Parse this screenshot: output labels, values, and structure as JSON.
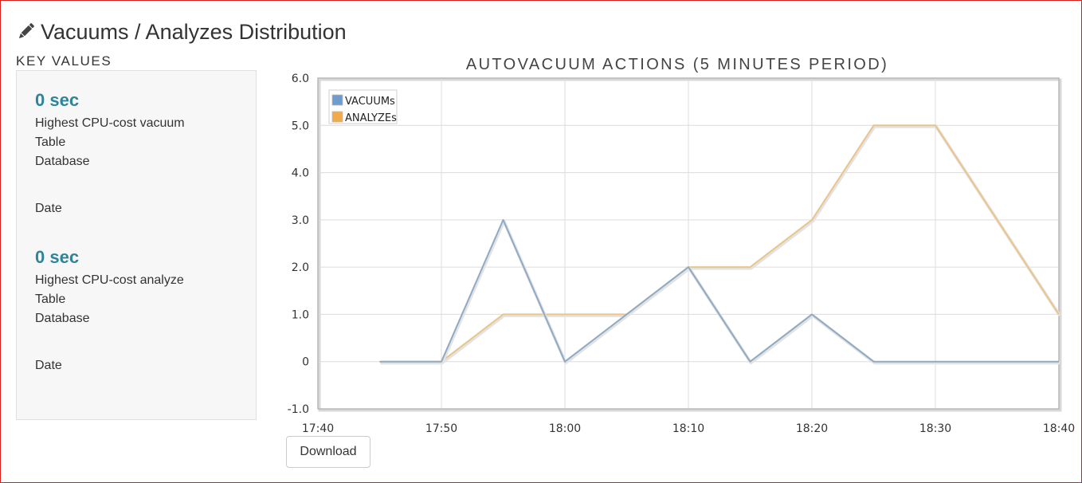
{
  "page": {
    "title": "Vacuums / Analyzes Distribution",
    "title_icon": "pencil-icon"
  },
  "key_values": {
    "heading": "KEY VALUES",
    "vacuum": {
      "value": "0 sec",
      "description": "Highest CPU-cost vacuum",
      "table_label": "Table",
      "database_label": "Database",
      "date_label": "Date"
    },
    "analyze": {
      "value": "0 sec",
      "description": "Highest CPU-cost analyze",
      "table_label": "Table",
      "database_label": "Database",
      "date_label": "Date"
    }
  },
  "download_label": "Download",
  "chart_data": {
    "type": "line",
    "title": "AUTOVACUUM ACTIONS (5 MINUTES PERIOD)",
    "xlabel": "",
    "ylabel": "",
    "x_ticks": [
      "17:40",
      "17:50",
      "18:00",
      "18:10",
      "18:20",
      "18:30",
      "18:40"
    ],
    "y_ticks": [
      "-1.0",
      "0",
      "1.0",
      "2.0",
      "3.0",
      "4.0",
      "5.0",
      "6.0"
    ],
    "xlim": [
      "17:40",
      "18:40"
    ],
    "ylim": [
      -1,
      6
    ],
    "grid": true,
    "legend_position": "top-left",
    "x": [
      "17:45",
      "17:50",
      "17:55",
      "18:00",
      "18:05",
      "18:10",
      "18:15",
      "18:20",
      "18:25",
      "18:30",
      "18:35",
      "18:40"
    ],
    "series": [
      {
        "name": "VACUUMs",
        "color": "#8faac3",
        "legend_color": "#6f9ccc",
        "values": [
          0,
          0,
          3,
          0,
          1,
          2,
          0,
          1,
          0,
          0,
          0,
          0
        ]
      },
      {
        "name": "ANALYZEs",
        "color": "#eac58a",
        "legend_color": "#f0ab4f",
        "values": [
          0,
          0,
          1,
          1,
          1,
          2,
          2,
          3,
          5,
          5,
          3,
          1
        ]
      }
    ]
  }
}
